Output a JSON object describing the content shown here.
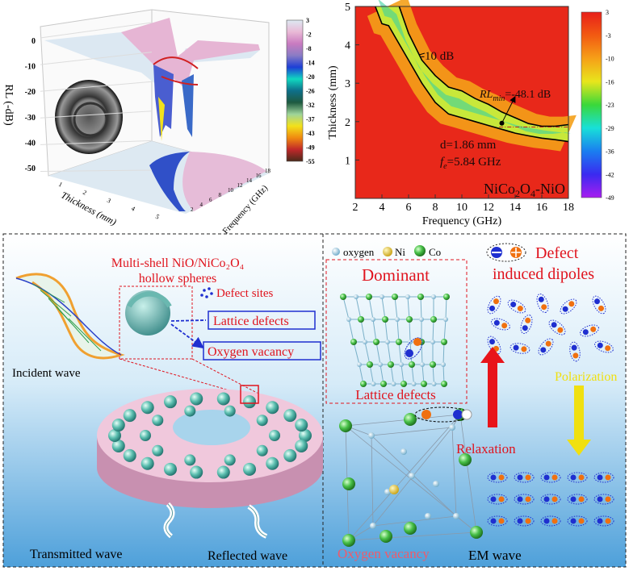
{
  "chart_data": [
    {
      "type": "surface3d",
      "zlabel": "RL (-dB)",
      "xlabel": "Thickness (mm)",
      "ylabel": "Frequency (GHz)",
      "z_ticks": [
        "0",
        "-10",
        "-20",
        "-30",
        "-40",
        "-50"
      ],
      "x_ticks": [
        "1",
        "2",
        "3",
        "4",
        "5"
      ],
      "y_ticks": [
        "2",
        "4",
        "6",
        "8",
        "10",
        "12",
        "14",
        "16",
        "18"
      ],
      "colorbar_ticks": [
        "3",
        "-2",
        "-8",
        "-14",
        "-20",
        "-26",
        "-32",
        "-37",
        "-43",
        "-49",
        "-55"
      ],
      "colorbar_colors": [
        "#dde9f2",
        "#e9b9d6",
        "#c97bc0",
        "#8a7cc4",
        "#1d3fd6",
        "#10d8c0",
        "#0e6f8a",
        "#1e5a40",
        "#9ed49a",
        "#f2e11a",
        "#f08a10",
        "#c0282a",
        "#4a2a1a"
      ],
      "inset": "TEM image of hollow sphere"
    },
    {
      "type": "heatmap",
      "xlabel": "Frequency (GHz)",
      "ylabel": "Thickness (mm)",
      "xlim": [
        2,
        18
      ],
      "ylim": [
        0,
        5
      ],
      "x_ticks": [
        "2",
        "4",
        "6",
        "8",
        "10",
        "12",
        "14",
        "16",
        "18"
      ],
      "y_ticks": [
        "1",
        "2",
        "3",
        "4",
        "5"
      ],
      "colorbar_ticks": [
        "3",
        "-3",
        "-10",
        "-16",
        "-23",
        "-29",
        "-36",
        "-42",
        "-49"
      ],
      "colorbar_colors": [
        "#e8201a",
        "#f25a12",
        "#f6a018",
        "#e8e61c",
        "#3ad83a",
        "#18e0d8",
        "#1a7ef0",
        "#3a2af0",
        "#a81ef0"
      ],
      "contour_label": "-10 dB",
      "contour_upper": [
        [
          5.3,
          5
        ],
        [
          6,
          4.3
        ],
        [
          7,
          3.6
        ],
        [
          8,
          3.2
        ],
        [
          9,
          2.9
        ],
        [
          10,
          2.8
        ],
        [
          11,
          2.6
        ],
        [
          12,
          2.45
        ],
        [
          13,
          2.25
        ],
        [
          14,
          2.1
        ],
        [
          15,
          1.95
        ],
        [
          16,
          1.88
        ],
        [
          17,
          1.88
        ],
        [
          18,
          1.92
        ]
      ],
      "contour_lower": [
        [
          3.5,
          5
        ],
        [
          4,
          4.55
        ],
        [
          4.5,
          4.5
        ],
        [
          5,
          4.2
        ],
        [
          6,
          3.6
        ],
        [
          7,
          3.0
        ],
        [
          8,
          2.5
        ],
        [
          9,
          2.2
        ],
        [
          10,
          2.1
        ],
        [
          11,
          2.0
        ],
        [
          12,
          1.9
        ],
        [
          13,
          1.8
        ],
        [
          14,
          1.7
        ],
        [
          15,
          1.63
        ],
        [
          16,
          1.57
        ],
        [
          17,
          1.53
        ],
        [
          18,
          1.48
        ]
      ],
      "rlmin_point": [
        13,
        1.96
      ],
      "d_line": 1.86,
      "annotation_rlmin": "RLmin=-48.1 dB",
      "annotation_rl": "RL",
      "annotation_min": "min",
      "annotation_rl_value": "=-48.1 dB",
      "annotation_d": "d=1.86 mm",
      "annotation_d_var": "d",
      "annotation_d_value": "=1.86 mm",
      "annotation_f_var": "f",
      "annotation_f_sub": "e",
      "annotation_f_value": "=5.84 GHz",
      "sample": "NiCo2O4-NiO",
      "sample_parts": [
        "NiCo",
        "2",
        "O",
        "4",
        "-NiO"
      ]
    }
  ],
  "left_panel": {
    "title_line1": "Multi-shell NiO/NiCo₂O₄",
    "title_line2": "hollow spheres",
    "defect_sites": "Defect sites",
    "lattice_defects": "Lattice defects",
    "oxygen_vacancy": "Oxygen vacancy",
    "incident_wave": "Incident wave",
    "transmitted_wave": "Transmitted wave",
    "reflected_wave": "Reflected wave"
  },
  "right_panel": {
    "legend": [
      "oxygen",
      "Ni",
      "Co"
    ],
    "dominant": "Dominant",
    "lattice_defects": "Lattice defects",
    "oxygen_vacancy": "Oxygen vacancy",
    "defect_title_line1": "Defect",
    "defect_title_line2": "induced dipoles",
    "polarization": "Polarization",
    "relaxation": "Relaxation",
    "em_wave": "EM wave"
  },
  "colors": {
    "red_text": "#e0141e",
    "blue_box": "#1f2fd0",
    "pink_text": "#f05a6a",
    "yellow_arrow": "#f0e010",
    "red_arrow": "#e8141a",
    "panel_bg_top": "#ffffff",
    "panel_bg_bottom": "#5aa8dc"
  }
}
